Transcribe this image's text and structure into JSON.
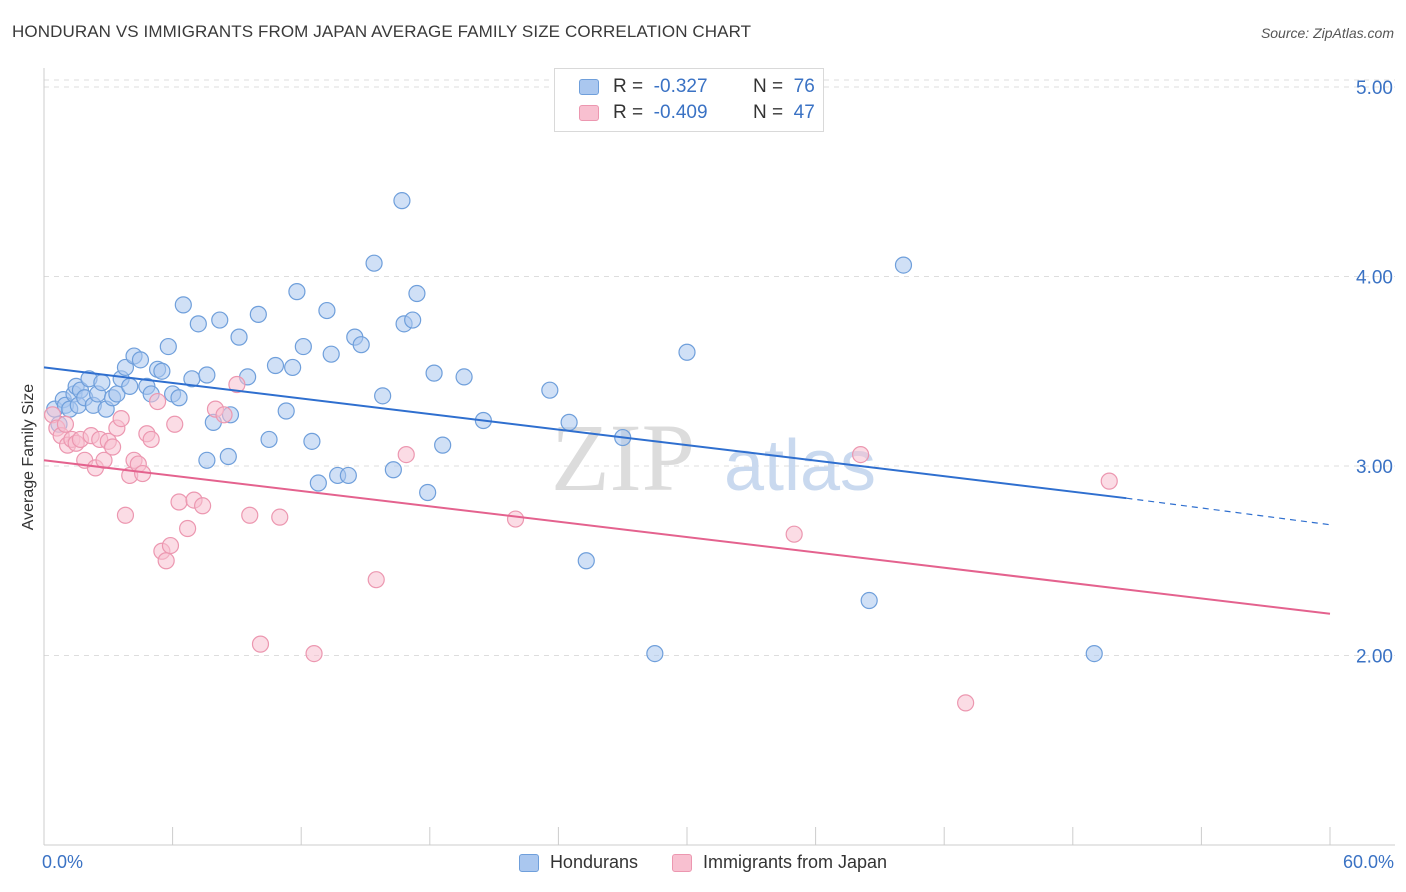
{
  "title": "HONDURAN VS IMMIGRANTS FROM JAPAN AVERAGE FAMILY SIZE CORRELATION CHART",
  "source": "Source: ZipAtlas.com",
  "watermark": {
    "zip": "ZIP",
    "atlas": "atlas"
  },
  "colors": {
    "blue_fill": "#aac7ef",
    "blue_stroke": "#6f9fdb",
    "blue_line": "#2f6fcf",
    "pink_fill": "#f8c0d0",
    "pink_stroke": "#ec97b0",
    "pink_line": "#e4628e",
    "axis_text": "#3a72c4",
    "grid": "#dddddd"
  },
  "legend": {
    "rows": [
      {
        "r_label": "R =",
        "r_value": "-0.327",
        "n_label": "N =",
        "n_value": "76"
      },
      {
        "r_label": "R =",
        "r_value": "-0.409",
        "n_label": "N =",
        "n_value": "47"
      }
    ]
  },
  "chart_data": {
    "type": "scatter",
    "title": "HONDURAN VS IMMIGRANTS FROM JAPAN AVERAGE FAMILY SIZE CORRELATION CHART",
    "xlabel": "",
    "ylabel": "Average Family Size",
    "xlim": [
      0,
      60
    ],
    "ylim": [
      1.0,
      5.1
    ],
    "x_tick_labels": [
      "0.0%",
      "60.0%"
    ],
    "y_ticks": [
      2.0,
      3.0,
      4.0,
      5.0
    ],
    "y_tick_labels": [
      "2.00",
      "3.00",
      "4.00",
      "5.00"
    ],
    "grid": true,
    "legend_position": "top-center",
    "series": [
      {
        "name": "Hondurans",
        "color": "#aac7ef",
        "points": [
          [
            0.5,
            3.3
          ],
          [
            0.7,
            3.22
          ],
          [
            0.9,
            3.35
          ],
          [
            1.0,
            3.32
          ],
          [
            1.2,
            3.3
          ],
          [
            1.4,
            3.38
          ],
          [
            1.5,
            3.42
          ],
          [
            1.6,
            3.32
          ],
          [
            1.7,
            3.4
          ],
          [
            1.9,
            3.36
          ],
          [
            2.1,
            3.46
          ],
          [
            2.3,
            3.32
          ],
          [
            2.5,
            3.38
          ],
          [
            2.7,
            3.44
          ],
          [
            2.9,
            3.3
          ],
          [
            3.2,
            3.36
          ],
          [
            3.4,
            3.38
          ],
          [
            3.6,
            3.46
          ],
          [
            3.8,
            3.52
          ],
          [
            4.0,
            3.42
          ],
          [
            4.2,
            3.58
          ],
          [
            4.5,
            3.56
          ],
          [
            4.8,
            3.42
          ],
          [
            5.0,
            3.38
          ],
          [
            5.3,
            3.51
          ],
          [
            5.5,
            3.5
          ],
          [
            5.8,
            3.63
          ],
          [
            6.0,
            3.38
          ],
          [
            6.3,
            3.36
          ],
          [
            6.5,
            3.85
          ],
          [
            6.9,
            3.46
          ],
          [
            7.2,
            3.75
          ],
          [
            7.6,
            3.48
          ],
          [
            7.9,
            3.23
          ],
          [
            8.2,
            3.77
          ],
          [
            8.7,
            3.27
          ],
          [
            9.1,
            3.68
          ],
          [
            9.5,
            3.47
          ],
          [
            10.0,
            3.8
          ],
          [
            10.5,
            3.14
          ],
          [
            10.8,
            3.53
          ],
          [
            11.3,
            3.29
          ],
          [
            11.6,
            3.52
          ],
          [
            11.8,
            3.92
          ],
          [
            12.1,
            3.63
          ],
          [
            12.5,
            3.13
          ],
          [
            12.8,
            2.91
          ],
          [
            13.2,
            3.82
          ],
          [
            13.4,
            3.59
          ],
          [
            13.7,
            2.95
          ],
          [
            14.2,
            2.95
          ],
          [
            14.5,
            3.68
          ],
          [
            14.8,
            3.64
          ],
          [
            15.4,
            4.07
          ],
          [
            15.8,
            3.37
          ],
          [
            16.3,
            2.98
          ],
          [
            16.7,
            4.4
          ],
          [
            16.8,
            3.75
          ],
          [
            17.2,
            3.77
          ],
          [
            17.4,
            3.91
          ],
          [
            17.9,
            2.86
          ],
          [
            18.2,
            3.49
          ],
          [
            18.6,
            3.11
          ],
          [
            19.6,
            3.47
          ],
          [
            20.5,
            3.24
          ],
          [
            23.6,
            3.4
          ],
          [
            24.5,
            3.23
          ],
          [
            25.3,
            2.5
          ],
          [
            27.0,
            3.15
          ],
          [
            28.5,
            2.01
          ],
          [
            30.0,
            3.6
          ],
          [
            38.5,
            2.29
          ],
          [
            40.1,
            4.06
          ],
          [
            49.0,
            2.01
          ],
          [
            7.6,
            3.03
          ],
          [
            8.6,
            3.05
          ]
        ]
      },
      {
        "name": "Immigrants from Japan",
        "color": "#f8c0d0",
        "points": [
          [
            0.4,
            3.27
          ],
          [
            0.6,
            3.2
          ],
          [
            0.8,
            3.16
          ],
          [
            1.0,
            3.22
          ],
          [
            1.1,
            3.11
          ],
          [
            1.3,
            3.14
          ],
          [
            1.5,
            3.12
          ],
          [
            1.7,
            3.14
          ],
          [
            1.9,
            3.03
          ],
          [
            2.2,
            3.16
          ],
          [
            2.4,
            2.99
          ],
          [
            2.6,
            3.14
          ],
          [
            2.8,
            3.03
          ],
          [
            3.0,
            3.13
          ],
          [
            3.2,
            3.1
          ],
          [
            3.4,
            3.2
          ],
          [
            3.6,
            3.25
          ],
          [
            3.8,
            2.74
          ],
          [
            4.0,
            2.95
          ],
          [
            4.2,
            3.03
          ],
          [
            4.4,
            3.01
          ],
          [
            4.6,
            2.96
          ],
          [
            4.8,
            3.17
          ],
          [
            5.0,
            3.14
          ],
          [
            5.3,
            3.34
          ],
          [
            5.5,
            2.55
          ],
          [
            5.7,
            2.5
          ],
          [
            5.9,
            2.58
          ],
          [
            6.1,
            3.22
          ],
          [
            6.3,
            2.81
          ],
          [
            6.7,
            2.67
          ],
          [
            7.0,
            2.82
          ],
          [
            7.4,
            2.79
          ],
          [
            8.0,
            3.3
          ],
          [
            8.4,
            3.27
          ],
          [
            9.0,
            3.43
          ],
          [
            9.6,
            2.74
          ],
          [
            10.1,
            2.06
          ],
          [
            11.0,
            2.73
          ],
          [
            12.6,
            2.01
          ],
          [
            15.5,
            2.4
          ],
          [
            16.9,
            3.06
          ],
          [
            22.0,
            2.72
          ],
          [
            35.0,
            2.64
          ],
          [
            38.1,
            3.06
          ],
          [
            43.0,
            1.75
          ],
          [
            49.7,
            2.92
          ]
        ]
      }
    ],
    "trend_lines": [
      {
        "series": "Hondurans",
        "x": [
          0,
          50.5
        ],
        "y": [
          3.52,
          2.83
        ],
        "dashed_to": [
          60,
          2.69
        ]
      },
      {
        "series": "Immigrants from Japan",
        "x": [
          0,
          60
        ],
        "y": [
          3.03,
          2.22
        ]
      }
    ]
  },
  "bottom_legend": [
    {
      "label": "Hondurans"
    },
    {
      "label": "Immigrants from Japan"
    }
  ]
}
